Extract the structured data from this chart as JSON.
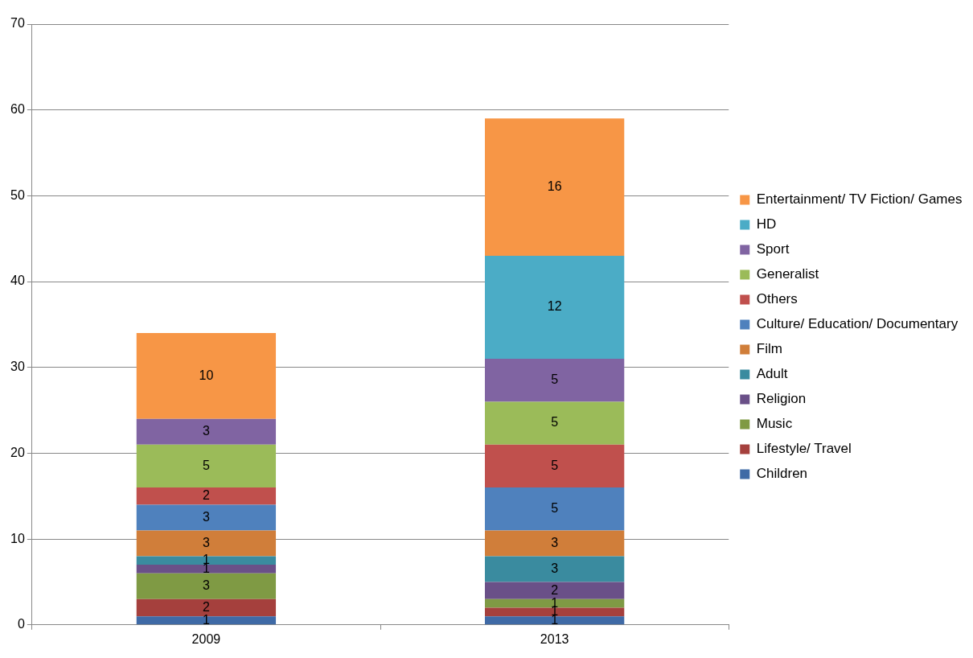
{
  "chart_data": {
    "type": "bar",
    "stacked": true,
    "categories": [
      "2009",
      "2013"
    ],
    "series": [
      {
        "name": "Children",
        "color": "#3f6aa6",
        "values": [
          1,
          1
        ]
      },
      {
        "name": "Lifestyle/ Travel",
        "color": "#a5403d",
        "values": [
          2,
          1
        ]
      },
      {
        "name": "Music",
        "color": "#7f9a44",
        "values": [
          3,
          1
        ]
      },
      {
        "name": "Religion",
        "color": "#6a5088",
        "values": [
          1,
          2
        ]
      },
      {
        "name": "Adult",
        "color": "#3a8b9f",
        "values": [
          1,
          3
        ]
      },
      {
        "name": "Film",
        "color": "#d07e3a",
        "values": [
          3,
          3
        ]
      },
      {
        "name": "Culture/ Education/ Documentary",
        "color": "#4f81bd",
        "values": [
          3,
          5
        ]
      },
      {
        "name": "Others",
        "color": "#c0504d",
        "values": [
          2,
          5
        ]
      },
      {
        "name": "Generalist",
        "color": "#9bbb59",
        "values": [
          5,
          5
        ]
      },
      {
        "name": "Sport",
        "color": "#8064a2",
        "values": [
          3,
          5
        ]
      },
      {
        "name": "HD",
        "color": "#4bacc6",
        "values": [
          null,
          12
        ]
      },
      {
        "name": "Entertainment/ TV Fiction/ Games",
        "color": "#f79646",
        "values": [
          10,
          16
        ]
      }
    ],
    "ylim": [
      0,
      70
    ],
    "yticks": [
      0,
      10,
      20,
      30,
      40,
      50,
      60,
      70
    ],
    "grid": "y",
    "legend": "right",
    "data_labels": true
  }
}
